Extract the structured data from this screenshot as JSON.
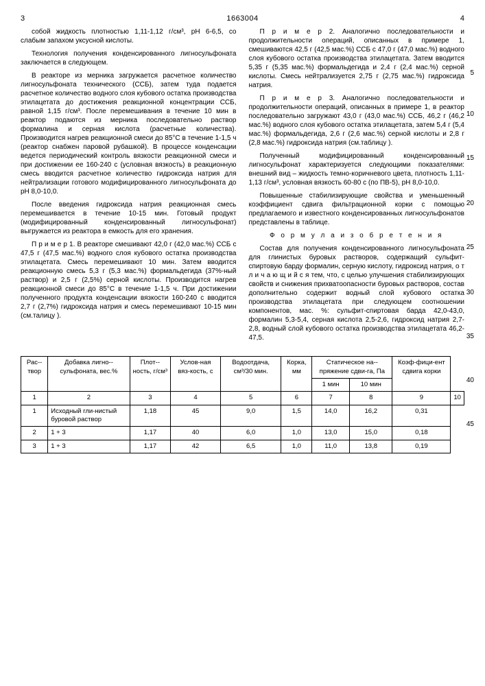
{
  "header": {
    "page_left": "3",
    "patent_no": "1663004",
    "page_right": "4"
  },
  "line_numbers": [
    "5",
    "10",
    "15",
    "20",
    "25",
    "30",
    "35",
    "40",
    "45"
  ],
  "left_col": {
    "p1": "собой жидкость плотностью 1,11-1,12 г/см³, pH 6-6,5, со слабым запахом уксусной кислоты.",
    "p2": "Технология получения конденсированного лигносульфоната заключается в следующем.",
    "p3": "В реакторе из мерника загружается расчетное количество лигносульфоната технического (ССБ), затем туда подается расчетное количество водного слоя кубового остатка производства этилацетата до достижения реакционной концентрации ССБ, равной 1,15 г/см³. После перемешивания в течение 10 мин в реактор подаются из мерника последовательно раствор формалина и серная кислота (расчетные количества). Производится нагрев реакционной смеси до 85°С в течение 1-1,5 ч (реактор снабжен паровой рубашкой). В процессе конденсации ведется периодический контроль вязкости реакционной смеси и при достижении ее 160-240 с (условная вязкость) в реакционную смесь вводится расчетное количество гидроксида натрия для нейтрализации готового модифицированного лигносульфоната до pH 8,0-10,0.",
    "p4": "После введения гидроксида натрия реакционная смесь перемешивается в течение 10-15 мин. Готовый продукт (модифицированный конденсированный лигносульфонат) выгружается из реактора в емкость для его хранения.",
    "p5": "П р и м е р 1. В реакторе смешивают 42,0 г (42,0 мас.%) ССБ с 47,5 г (47,5 мас.%) водного слоя кубового остатка производства этилацетата. Смесь перемешивают 10 мин. Затем вводится реакционную смесь 5,3 г (5,3 мас.%) формальдегида (37%-ный раствор) и 2,5 г (2,5%) серной кислоты. Производится нагрев реакционной смеси до 85°С в течение 1-1,5 ч. При достижении полученного продукта конденсации вязкости 160-240 с вводится 2,7 г (2,7%) гидроксида натрия и смесь перемешивают 10-15 мин (см.талицу )."
  },
  "right_col": {
    "p1": "П р и м е р 2. Аналогично последовательности и продолжительности операций, описанных в примере 1, смешиваются 42,5 г (42,5 мас.%) ССБ с 47,0 г (47,0 мас.%) водного слоя кубового остатка производства этилацетата. Затем вводится 5,35 г (5,35 мас.%) формальдегида и 2,4 г (2,4 мас.%) серной кислоты. Смесь нейтрализуется 2,75 г (2,75 мас.%) гидроксида натрия.",
    "p2": "П р и м е р 3. Аналогично последовательности и продолжительности операций, описанных в примере 1, в реактор последовательно загружают 43,0 г (43,0 мас.%) ССБ, 46,2 г (46,2 мас.%) водного слоя кубового остатка этилацетата, затем 5,4 г (5,4 мас.%) формальдегида, 2,6 г (2,6 мас.%) серной кислоты и 2,8 г (2,8 мас.%) гидроксида натрия (см.таблицу ).",
    "p3": "Полученный модифицированный конденсированный лигносульфонат характеризуется следующими показателями: внешний вид – жидкость темно-коричневого цвета, плотность 1,11-1,13 г/см³, условная вязкость 60-80 с (по ПВ-5), pH 8,0-10,0.",
    "p4": "Повышенные стабилизирующие свойства и уменьшенный коэффициент сдвига фильтрационной корки с помощью предлагаемого и известного конденсированных лигносульфонатов представлены в таблице.",
    "formula": "Ф о р м у л а  и з о б р е т е н и я",
    "p5": "Состав для получения конденсированного лигносульфоната для глинистых буровых растворов, содержащий сульфит-спиртовую барду формалин, серную кислоту, гидроксид натрия, о т л и ч а ю щ и й с я тем, что, с целью улучшения стабилизирующих свойств и снижения прихватоопасности буровых растворов, состав дополнительно содержит водный слой кубового остатка производства этилацетата при следующем соотношении компонентов, мас. %: сульфит-спиртовая барда 42,0-43,0, формалин 5,3-5,4, серная кислота 2,5-2,6, гидроксид натрия 2,7-2,8, водный слой кубового остатка производства этилацетата 46,2-47,5."
  },
  "table": {
    "headers": {
      "c1": "Рас-­твор",
      "c2": "Добавка лигно-­сульфоната, вес.%",
      "c3": "Плот-­ность, г/см³",
      "c4": "Услов-­ная вяз-­кость, с",
      "c5": "Водоотдача, см³/30 мин.",
      "c6": "Корка, мм",
      "c7": "Статическое на-­пряжение сдви-­га, Па",
      "c7a": "1 мин",
      "c7b": "10 мин",
      "c8": "Коэф-­фици-­ент сдвига корки"
    },
    "subhead": [
      "1",
      "2",
      "3",
      "4",
      "5",
      "6",
      "7",
      "8",
      "9",
      "10"
    ],
    "rows": [
      [
        "1",
        "Исходный гли-­нистый буровой раствор",
        "1,18",
        "45",
        "9,0",
        "1,5",
        "14,0",
        "16,2",
        "0,31"
      ],
      [
        "2",
        "1 + 3",
        "1,17",
        "40",
        "6,0",
        "1,0",
        "13,0",
        "15,0",
        "0,18"
      ],
      [
        "3",
        "1 + 3",
        "1,17",
        "42",
        "6,5",
        "1,0",
        "11,0",
        "13,8",
        "0,19"
      ]
    ]
  }
}
